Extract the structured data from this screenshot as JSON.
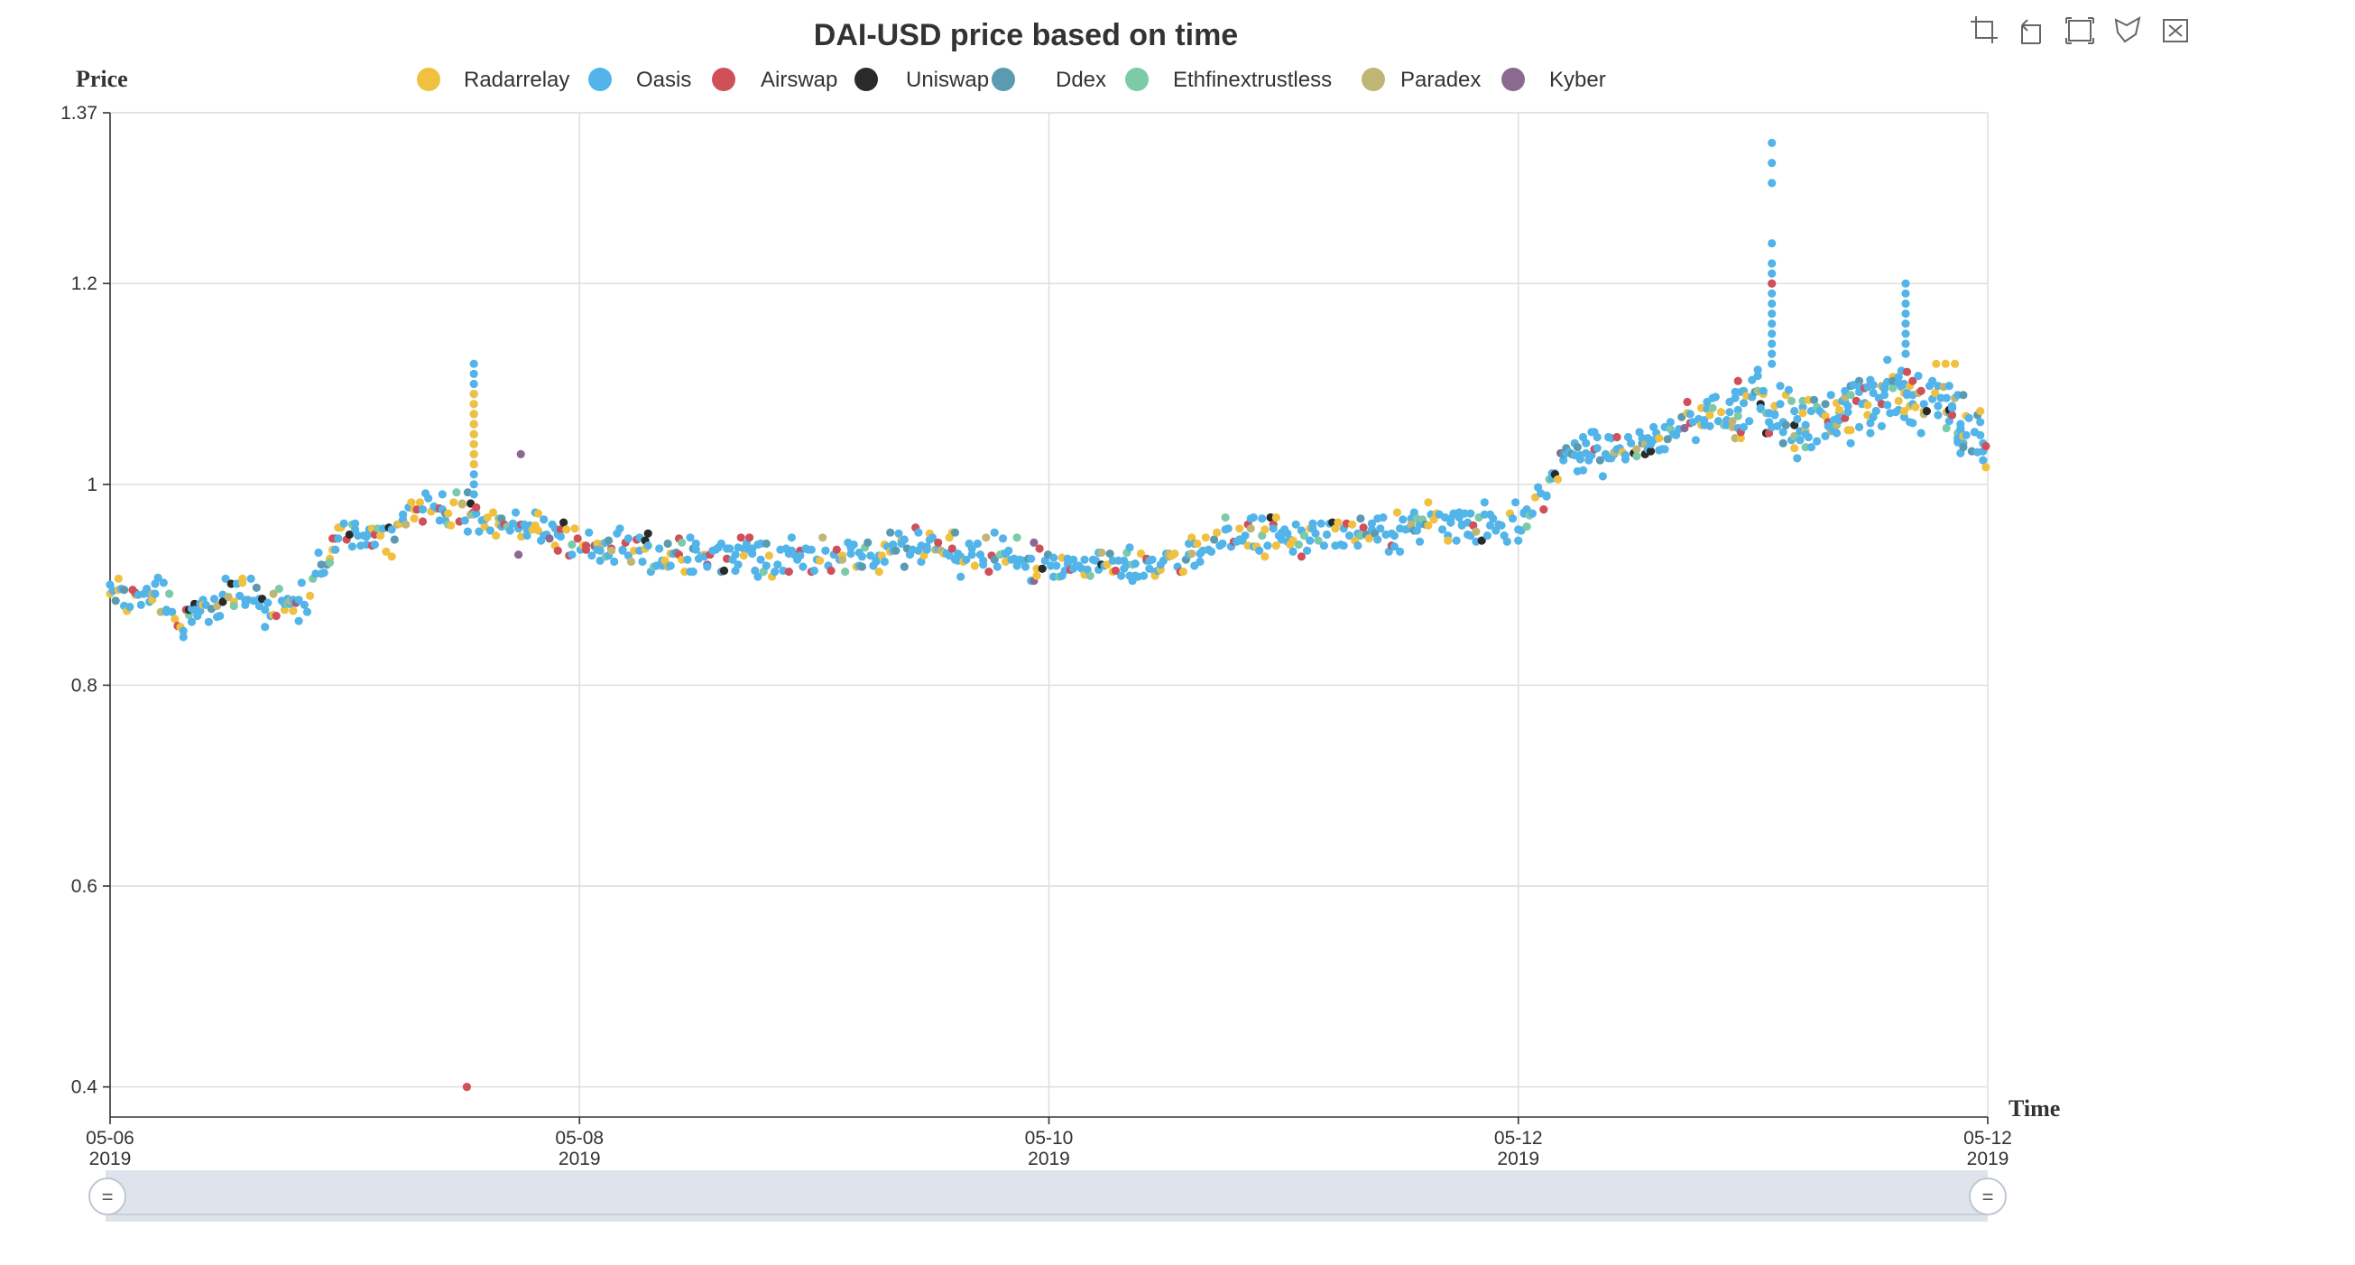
{
  "chart_data": {
    "type": "scatter",
    "title": "DAI-USD price based on time",
    "xlabel": "Time",
    "ylabel": "Price",
    "ylim": [
      0.37,
      1.37
    ],
    "xlim": [
      "2019-05-06",
      "2019-05-12"
    ],
    "y_ticks": [
      "1.37",
      "1.2",
      "1",
      "0.8",
      "0.6",
      "0.4"
    ],
    "x_ticks": [
      {
        "date": "05-06",
        "year": "2019"
      },
      {
        "date": "05-08",
        "year": "2019"
      },
      {
        "date": "05-10",
        "year": "2019"
      },
      {
        "date": "05-12",
        "year": "2019"
      },
      {
        "date": "05-12",
        "year": "2019"
      }
    ],
    "grid": true,
    "legend_position": "top",
    "series": [
      {
        "name": "Radarrelay",
        "color": "#f0c040"
      },
      {
        "name": "Oasis",
        "color": "#52b4e8"
      },
      {
        "name": "Airswap",
        "color": "#d0505a"
      },
      {
        "name": "Uniswap",
        "color": "#2a2a2a"
      },
      {
        "name": "Ddex",
        "color": "#5a9bb0"
      },
      {
        "name": "Ethfinextrustless",
        "color": "#7ccaa8"
      },
      {
        "name": "Paradex",
        "color": "#bfb676"
      },
      {
        "name": "Kyber",
        "color": "#8a6a90"
      }
    ],
    "trend": [
      [
        0.0,
        0.89
      ],
      [
        0.1,
        0.89
      ],
      [
        0.2,
        0.89
      ],
      [
        0.3,
        0.87
      ],
      [
        0.4,
        0.88
      ],
      [
        0.55,
        0.89
      ],
      [
        0.7,
        0.88
      ],
      [
        0.8,
        0.88
      ],
      [
        0.9,
        0.91
      ],
      [
        1.0,
        0.95
      ],
      [
        1.2,
        0.95
      ],
      [
        1.35,
        0.98
      ],
      [
        1.5,
        0.97
      ],
      [
        1.7,
        0.96
      ],
      [
        1.8,
        0.96
      ],
      [
        2.0,
        0.94
      ],
      [
        2.2,
        0.94
      ],
      [
        2.4,
        0.93
      ],
      [
        2.6,
        0.93
      ],
      [
        2.8,
        0.93
      ],
      [
        3.0,
        0.93
      ],
      [
        3.2,
        0.93
      ],
      [
        3.4,
        0.94
      ],
      [
        3.6,
        0.93
      ],
      [
        3.8,
        0.93
      ],
      [
        4.0,
        0.92
      ],
      [
        4.2,
        0.92
      ],
      [
        4.4,
        0.92
      ],
      [
        4.6,
        0.93
      ],
      [
        4.8,
        0.95
      ],
      [
        5.0,
        0.95
      ],
      [
        5.2,
        0.95
      ],
      [
        5.4,
        0.95
      ],
      [
        5.6,
        0.96
      ],
      [
        5.8,
        0.96
      ],
      [
        6.0,
        0.96
      ],
      [
        6.1,
        0.98
      ],
      [
        6.2,
        1.03
      ],
      [
        6.4,
        1.03
      ],
      [
        6.6,
        1.04
      ],
      [
        6.8,
        1.07
      ],
      [
        7.0,
        1.08
      ],
      [
        7.2,
        1.06
      ],
      [
        7.4,
        1.07
      ],
      [
        7.6,
        1.09
      ],
      [
        7.8,
        1.08
      ],
      [
        7.95,
        1.05
      ],
      [
        8.0,
        1.04
      ]
    ],
    "x_total_units": 8.0,
    "x_tick_units": [
      0,
      2,
      4,
      6,
      8
    ],
    "highlights": [
      {
        "x": 1.55,
        "values": [
          1.12,
          1.11,
          1.1,
          1.09,
          1.08,
          1.07,
          1.06,
          1.05,
          1.04,
          1.03,
          1.02,
          1.01,
          1.0,
          0.99
        ],
        "series": "Oasis"
      },
      {
        "x": 1.55,
        "values": [
          1.09,
          1.08,
          1.07,
          1.06,
          1.05,
          1.04,
          1.03,
          1.02
        ],
        "series": "Radarrelay"
      },
      {
        "x": 1.52,
        "values": [
          0.4
        ],
        "series": "Airswap"
      },
      {
        "x": 1.75,
        "values": [
          1.03
        ],
        "series": "Kyber"
      },
      {
        "x": 1.74,
        "values": [
          0.93
        ],
        "series": "Kyber"
      },
      {
        "x": 7.08,
        "values": [
          1.34,
          1.32,
          1.3,
          1.24,
          1.22,
          1.21,
          1.2,
          1.19,
          1.18,
          1.17,
          1.16,
          1.15,
          1.14,
          1.13,
          1.12
        ],
        "series": "Oasis"
      },
      {
        "x": 7.08,
        "values": [
          1.2
        ],
        "series": "Airswap"
      },
      {
        "x": 7.65,
        "values": [
          1.2,
          1.19,
          1.18,
          1.17,
          1.16,
          1.15,
          1.14,
          1.13
        ],
        "series": "Oasis"
      },
      {
        "x": 7.78,
        "values": [
          1.12
        ],
        "series": "Radarrelay"
      },
      {
        "x": 7.82,
        "values": [
          1.12
        ],
        "series": "Radarrelay"
      },
      {
        "x": 7.86,
        "values": [
          1.12
        ],
        "series": "Radarrelay"
      }
    ],
    "slider": {
      "start_label": "=",
      "end_label": "="
    }
  },
  "toolbox": [
    {
      "name": "zoom-icon"
    },
    {
      "name": "zoom-reset-icon"
    },
    {
      "name": "rect-select-icon"
    },
    {
      "name": "polygon-select-icon"
    },
    {
      "name": "clear-select-icon"
    }
  ]
}
